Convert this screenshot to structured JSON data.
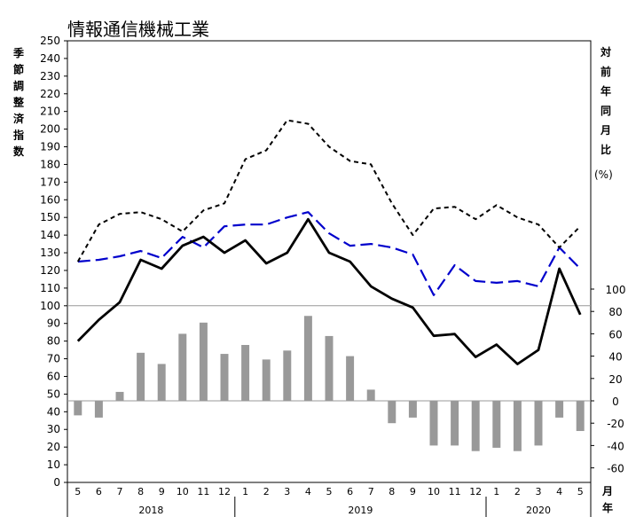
{
  "chart_data": {
    "type": "line",
    "title": "情報通信機械工業",
    "ylabel_left": "季節調整済指数",
    "ylabel_right": "対前年同月比",
    "ylabel_right_unit": "(%)",
    "xlabel": "月年",
    "left_axis": {
      "min": 0,
      "max": 250,
      "ticks": [
        "0",
        "10",
        "20",
        "30",
        "40",
        "50",
        "60",
        "70",
        "80",
        "90",
        "100",
        "110",
        "120",
        "130",
        "140",
        "150",
        "160",
        "170",
        "180",
        "190",
        "200",
        "210",
        "220",
        "230",
        "240",
        "250"
      ]
    },
    "right_axis": {
      "min": -75,
      "max": 100,
      "ticks": [
        "-60",
        "-40",
        "-20",
        "0",
        "20",
        "40",
        "60",
        "80",
        "100"
      ]
    },
    "reference_line_index": 100,
    "months": [
      "5",
      "6",
      "7",
      "8",
      "9",
      "10",
      "11",
      "12",
      "1",
      "2",
      "3",
      "4",
      "5",
      "6",
      "7",
      "8",
      "9",
      "10",
      "11",
      "12",
      "1",
      "2",
      "3",
      "4",
      "5"
    ],
    "years": [
      {
        "label": "2018",
        "start": 0,
        "end": 7
      },
      {
        "label": "2019",
        "start": 8,
        "end": 19
      },
      {
        "label": "2020",
        "start": 20,
        "end": 24
      }
    ],
    "series": [
      {
        "style": "solid-black",
        "axis": "left",
        "values": [
          80,
          92,
          102,
          126,
          121,
          134,
          139,
          130,
          137,
          124,
          130,
          149,
          130,
          125,
          111,
          104,
          99,
          83,
          84,
          71,
          78,
          67,
          75,
          121,
          95
        ]
      },
      {
        "style": "dashed-black",
        "axis": "left",
        "values": [
          125,
          146,
          152,
          153,
          149,
          142,
          154,
          158,
          183,
          188,
          205,
          203,
          190,
          182,
          180,
          158,
          140,
          155,
          156,
          149,
          157,
          150,
          146,
          133,
          145
        ]
      },
      {
        "style": "dashed-blue",
        "axis": "left",
        "values": [
          125,
          126,
          128,
          131,
          127,
          139,
          133,
          145,
          146,
          146,
          150,
          153,
          141,
          134,
          135,
          133,
          129,
          106,
          123,
          114,
          113,
          114,
          111,
          133,
          121
        ]
      },
      {
        "style": "bars-gray",
        "axis": "right",
        "values": [
          -13,
          -15,
          8,
          43,
          33,
          60,
          70,
          42,
          50,
          37,
          45,
          76,
          58,
          40,
          10,
          -20,
          -15,
          -40,
          -40,
          -45,
          -42,
          -45,
          -40,
          -15,
          -27
        ]
      }
    ],
    "colors": {
      "solid": "#000000",
      "dashed": "#000000",
      "blue": "#0000cc",
      "bars": "#999999",
      "refline": "#999999"
    }
  }
}
